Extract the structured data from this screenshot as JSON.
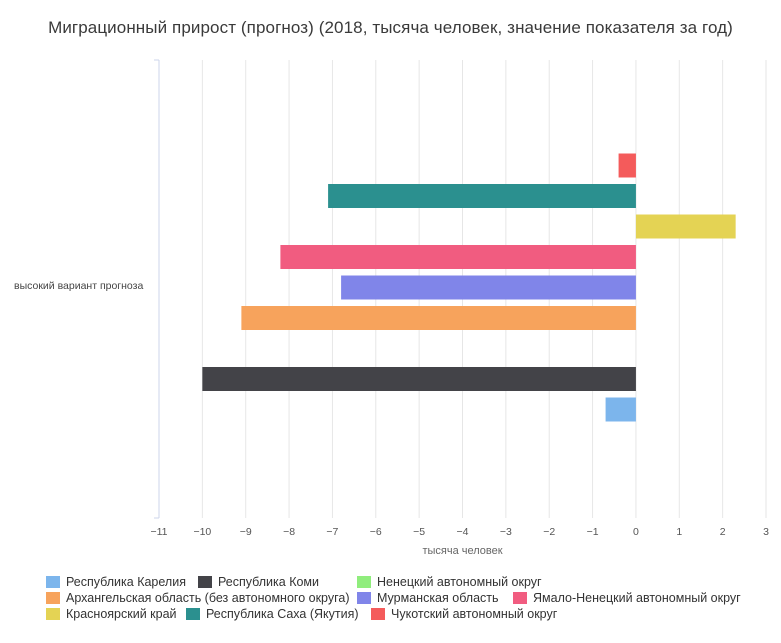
{
  "chart_data": {
    "type": "bar",
    "orientation": "horizontal",
    "title": "Миграционный прирост (прогноз) (2018, тысяча человек, значение показателя за год)",
    "xlabel": "тысяча человек",
    "ylabel": "",
    "categories": [
      "высокий вариант прогноза"
    ],
    "xlim": [
      -11,
      3
    ],
    "x_ticks": [
      "−11",
      "−10",
      "−9",
      "−8",
      "−7",
      "−6",
      "−5",
      "−4",
      "−3",
      "−2",
      "−1",
      "0",
      "1",
      "2",
      "3"
    ],
    "grid": true,
    "legend_position": "bottom",
    "series": [
      {
        "name": "Республика Карелия",
        "color": "#7cb5ec",
        "values": [
          -0.7
        ]
      },
      {
        "name": "Республика Коми",
        "color": "#434348",
        "values": [
          -10.0
        ]
      },
      {
        "name": "Ненецкий автономный округ",
        "color": "#90ed7d",
        "values": [
          0.0
        ]
      },
      {
        "name": "Архангельская область (без автономного округа)",
        "color": "#f7a35c",
        "values": [
          -9.1
        ]
      },
      {
        "name": "Мурманская область",
        "color": "#8085e9",
        "values": [
          -6.8
        ]
      },
      {
        "name": "Ямало-Ненецкий автономный округ",
        "color": "#f15c80",
        "values": [
          -8.2
        ]
      },
      {
        "name": "Красноярский край",
        "color": "#e4d354",
        "values": [
          2.3
        ]
      },
      {
        "name": "Республика Саха (Якутия)",
        "color": "#2b908f",
        "values": [
          -7.1
        ]
      },
      {
        "name": "Чукотский автономный округ",
        "color": "#f45b5b",
        "values": [
          -0.4
        ]
      }
    ]
  }
}
